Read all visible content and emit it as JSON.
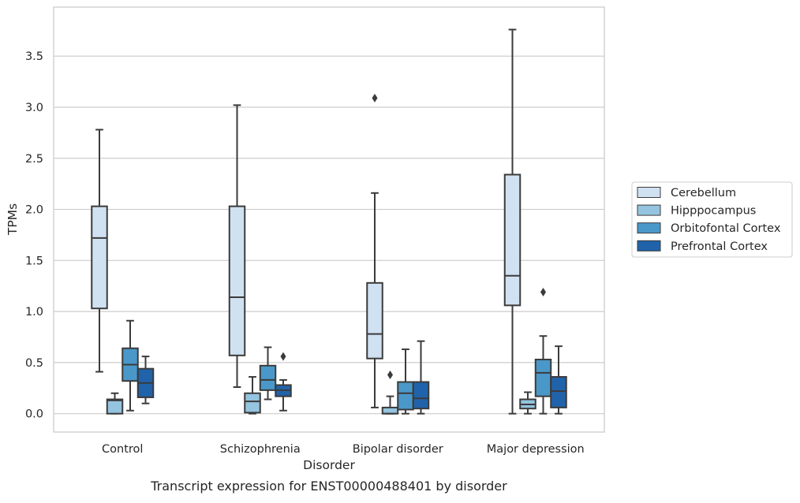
{
  "chart_data": {
    "type": "box",
    "caption": "Transcript expression for ENST00000488401 by disorder",
    "xlabel": "Disorder",
    "ylabel": "TPMs",
    "ylim": [
      -0.18,
      3.98
    ],
    "yticks": [
      "0.0",
      "0.5",
      "1.0",
      "1.5",
      "2.0",
      "2.5",
      "3.0",
      "3.5"
    ],
    "grid": "horizontal",
    "legend_position": "right",
    "categories": [
      "Control",
      "Schizophrenia",
      "Bipolar disorder",
      "Major depression"
    ],
    "series": [
      {
        "name": "Cerebellum",
        "color": "#d0e1f2",
        "boxes": [
          {
            "whisker_low": 0.41,
            "q1": 1.03,
            "median": 1.72,
            "q3": 2.03,
            "whisker_high": 2.78,
            "outliers": []
          },
          {
            "whisker_low": 0.26,
            "q1": 0.57,
            "median": 1.14,
            "q3": 2.03,
            "whisker_high": 3.02,
            "outliers": []
          },
          {
            "whisker_low": 0.06,
            "q1": 0.54,
            "median": 0.78,
            "q3": 1.28,
            "whisker_high": 2.16,
            "outliers": [
              3.09
            ]
          },
          {
            "whisker_low": 0.0,
            "q1": 1.06,
            "median": 1.35,
            "q3": 2.34,
            "whisker_high": 3.76,
            "outliers": []
          }
        ]
      },
      {
        "name": "Hipppocampus",
        "color": "#94c4df",
        "boxes": [
          {
            "whisker_low": 0.0,
            "q1": 0.0,
            "median": 0.13,
            "q3": 0.14,
            "whisker_high": 0.2,
            "outliers": []
          },
          {
            "whisker_low": 0.0,
            "q1": 0.01,
            "median": 0.12,
            "q3": 0.2,
            "whisker_high": 0.36,
            "outliers": []
          },
          {
            "whisker_low": 0.0,
            "q1": 0.0,
            "median": 0.0,
            "q3": 0.06,
            "whisker_high": 0.17,
            "outliers": [
              0.38
            ]
          },
          {
            "whisker_low": 0.0,
            "q1": 0.05,
            "median": 0.09,
            "q3": 0.14,
            "whisker_high": 0.21,
            "outliers": []
          }
        ]
      },
      {
        "name": "Orbitofontal Cortex",
        "color": "#4a98c9",
        "boxes": [
          {
            "whisker_low": 0.03,
            "q1": 0.32,
            "median": 0.48,
            "q3": 0.64,
            "whisker_high": 0.91,
            "outliers": []
          },
          {
            "whisker_low": 0.14,
            "q1": 0.23,
            "median": 0.33,
            "q3": 0.47,
            "whisker_high": 0.65,
            "outliers": []
          },
          {
            "whisker_low": 0.0,
            "q1": 0.04,
            "median": 0.2,
            "q3": 0.31,
            "whisker_high": 0.63,
            "outliers": []
          },
          {
            "whisker_low": 0.0,
            "q1": 0.17,
            "median": 0.4,
            "q3": 0.53,
            "whisker_high": 0.76,
            "outliers": [
              1.19
            ]
          }
        ]
      },
      {
        "name": "Prefrontal Cortex",
        "color": "#2163aa",
        "boxes": [
          {
            "whisker_low": 0.1,
            "q1": 0.16,
            "median": 0.3,
            "q3": 0.44,
            "whisker_high": 0.56,
            "outliers": []
          },
          {
            "whisker_low": 0.03,
            "q1": 0.17,
            "median": 0.23,
            "q3": 0.28,
            "whisker_high": 0.33,
            "outliers": [
              0.56
            ]
          },
          {
            "whisker_low": 0.0,
            "q1": 0.05,
            "median": 0.15,
            "q3": 0.31,
            "whisker_high": 0.71,
            "outliers": []
          },
          {
            "whisker_low": 0.0,
            "q1": 0.06,
            "median": 0.22,
            "q3": 0.36,
            "whisker_high": 0.66,
            "outliers": []
          }
        ]
      }
    ]
  }
}
